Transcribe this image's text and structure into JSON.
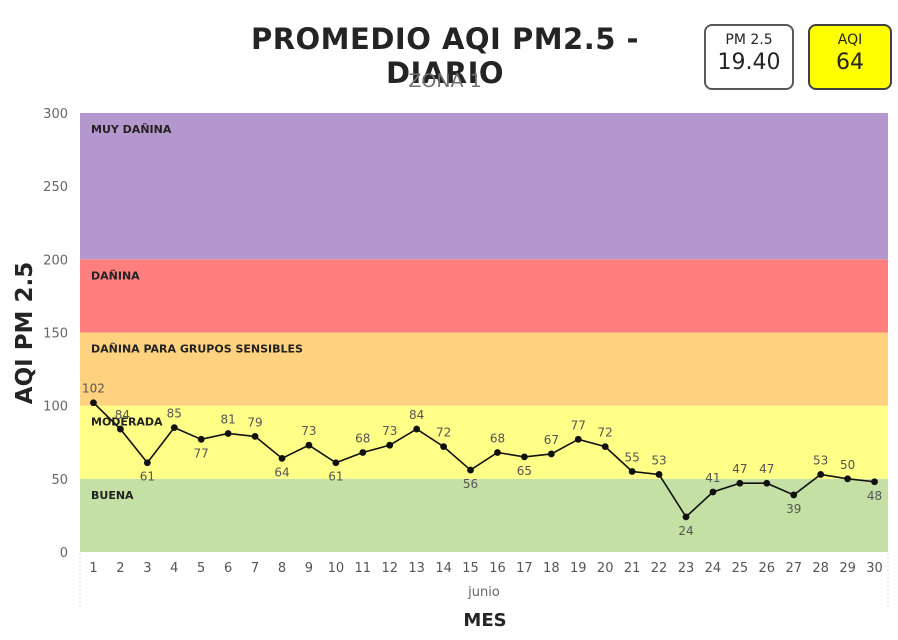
{
  "header": {
    "title": "PROMEDIO AQI PM2.5 - DIARIO",
    "subtitle": "ZONA 1"
  },
  "cards": {
    "pm25": {
      "label": "PM 2.5",
      "value": "19.40",
      "bg": "#ffffff"
    },
    "aqi": {
      "label": "AQI",
      "value": "64",
      "bg": "#ffff00"
    }
  },
  "chart_data": {
    "type": "line",
    "title": "PROMEDIO AQI PM2.5 - DIARIO",
    "subtitle": "ZONA 1",
    "xlabel": "MES",
    "x_group_label": "junio",
    "ylabel": "AQI PM 2.5",
    "ylim": [
      0,
      300
    ],
    "yticks": [
      0,
      50,
      100,
      150,
      200,
      250,
      300
    ],
    "grid": false,
    "x": [
      1,
      2,
      3,
      4,
      5,
      6,
      7,
      8,
      9,
      10,
      11,
      12,
      13,
      14,
      15,
      16,
      17,
      18,
      19,
      20,
      21,
      22,
      23,
      24,
      25,
      26,
      27,
      28,
      29,
      30
    ],
    "series": [
      {
        "values": [
          102,
          84,
          61,
          85,
          77,
          81,
          79,
          64,
          73,
          61,
          68,
          73,
          84,
          72,
          56,
          68,
          65,
          67,
          77,
          72,
          55,
          53,
          24,
          41,
          47,
          47,
          39,
          53,
          50,
          48
        ],
        "color": "#111111"
      }
    ],
    "bands": [
      {
        "label": "BUENA",
        "from": 0,
        "to": 50,
        "color": "#c5e0a5"
      },
      {
        "label": "MODERADA",
        "from": 50,
        "to": 100,
        "color": "#ffff88"
      },
      {
        "label": "DAÑINA PARA GRUPOS SENSIBLES",
        "from": 100,
        "to": 150,
        "color": "#ffd27f"
      },
      {
        "label": "DAÑINA",
        "from": 150,
        "to": 200,
        "color": "#ff7f7f"
      },
      {
        "label": "MUY DAÑINA",
        "from": 200,
        "to": 300,
        "color": "#b497cc"
      }
    ]
  }
}
